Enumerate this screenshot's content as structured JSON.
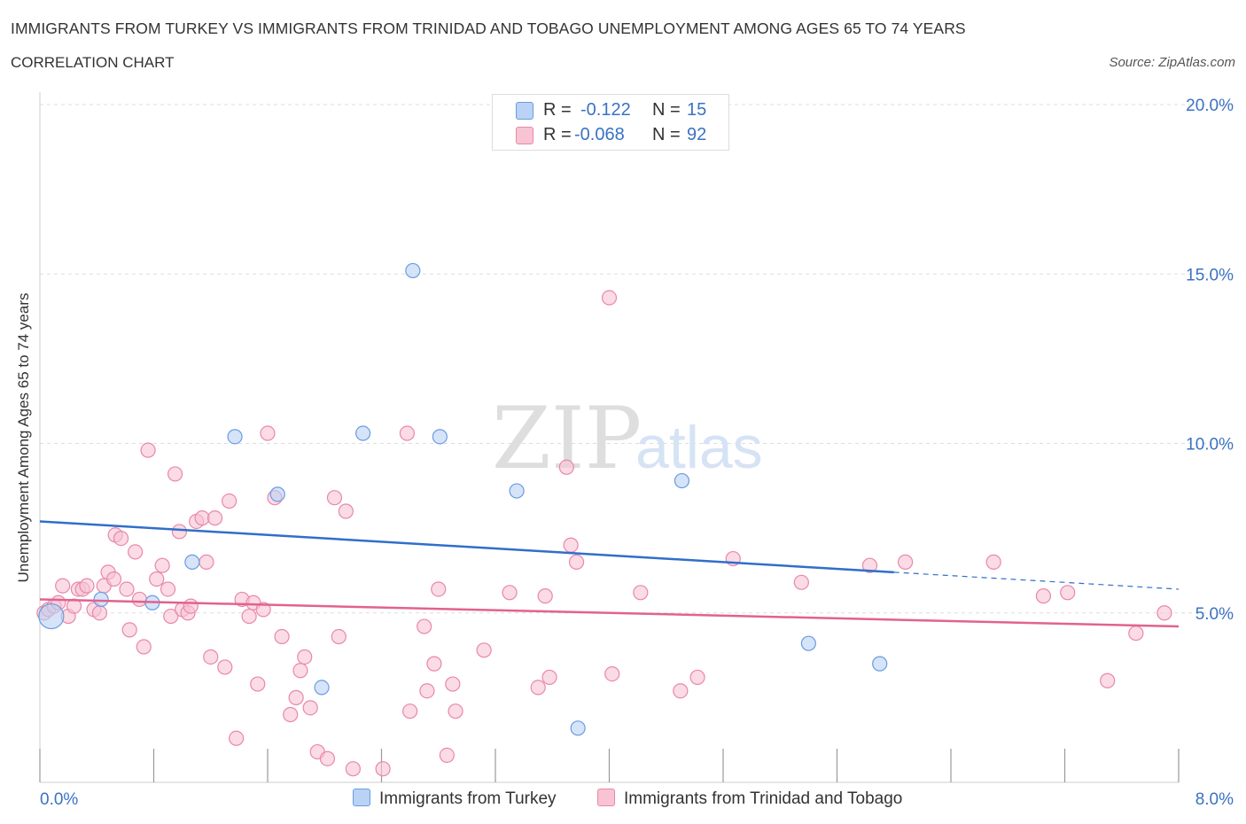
{
  "title": "IMMIGRANTS FROM TURKEY VS IMMIGRANTS FROM TRINIDAD AND TOBAGO UNEMPLOYMENT AMONG AGES 65 TO 74 YEARS",
  "subtitle": "CORRELATION CHART",
  "source": "Source: ZipAtlas.com",
  "watermark": {
    "zip": "ZIP",
    "atlas": "atlas"
  },
  "legend": {
    "r_label": "R =",
    "n_label": "N =",
    "series": [
      {
        "name": "Immigrants from Turkey",
        "r": "-0.122",
        "n": "15"
      },
      {
        "name": "Immigrants from Trinidad and Tobago",
        "r": "-0.068",
        "n": "92"
      }
    ]
  },
  "colors": {
    "turkey_fill": "#b9d2f5",
    "turkey_stroke": "#6a9be0",
    "turkey_line": "#2f6fca",
    "tt_fill": "#f8c3d3",
    "tt_stroke": "#e888a8",
    "tt_line": "#e2628f",
    "axis_text": "#3a72c4",
    "grid": "#dddddd"
  },
  "chart_data": {
    "type": "scatter",
    "title": "IMMIGRANTS FROM TURKEY VS IMMIGRANTS FROM TRINIDAD AND TOBAGO UNEMPLOYMENT AMONG AGES 65 TO 74 YEARS",
    "xlabel": "",
    "ylabel": "Unemployment Among Ages 65 to 74 years",
    "xlim": [
      0,
      8
    ],
    "ylim": [
      0,
      20
    ],
    "x_tick_labels": [
      "0.0%",
      "8.0%"
    ],
    "y_ticks": [
      5,
      10,
      15,
      20
    ],
    "y_tick_labels": [
      "5.0%",
      "10.0%",
      "15.0%",
      "20.0%"
    ],
    "grid": true,
    "series": [
      {
        "name": "Immigrants from Turkey",
        "points": [
          [
            0.08,
            4.9
          ],
          [
            0.43,
            5.4
          ],
          [
            0.79,
            5.3
          ],
          [
            1.07,
            6.5
          ],
          [
            1.37,
            10.2
          ],
          [
            1.67,
            8.5
          ],
          [
            1.98,
            2.8
          ],
          [
            2.27,
            10.3
          ],
          [
            2.62,
            15.1
          ],
          [
            2.81,
            10.2
          ],
          [
            3.35,
            8.6
          ],
          [
            3.78,
            1.6
          ],
          [
            4.51,
            8.9
          ],
          [
            5.4,
            4.1
          ],
          [
            5.9,
            3.5
          ]
        ],
        "trend": {
          "x": [
            0,
            6.0,
            8.0
          ],
          "y": [
            7.7,
            6.2,
            5.7
          ],
          "dashed_from": 6.0
        }
      },
      {
        "name": "Immigrants from Trinidad and Tobago",
        "points": [
          [
            0.03,
            5.0
          ],
          [
            0.06,
            5.1
          ],
          [
            0.1,
            5.2
          ],
          [
            0.13,
            5.3
          ],
          [
            0.16,
            5.8
          ],
          [
            0.2,
            4.9
          ],
          [
            0.24,
            5.2
          ],
          [
            0.27,
            5.7
          ],
          [
            0.3,
            5.7
          ],
          [
            0.33,
            5.8
          ],
          [
            0.38,
            5.1
          ],
          [
            0.42,
            5.0
          ],
          [
            0.45,
            5.8
          ],
          [
            0.48,
            6.2
          ],
          [
            0.52,
            6.0
          ],
          [
            0.53,
            7.3
          ],
          [
            0.57,
            7.2
          ],
          [
            0.61,
            5.7
          ],
          [
            0.63,
            4.5
          ],
          [
            0.67,
            6.8
          ],
          [
            0.7,
            5.4
          ],
          [
            0.73,
            4.0
          ],
          [
            0.76,
            9.8
          ],
          [
            0.82,
            6.0
          ],
          [
            0.86,
            6.4
          ],
          [
            0.9,
            5.7
          ],
          [
            0.92,
            4.9
          ],
          [
            0.95,
            9.1
          ],
          [
            0.98,
            7.4
          ],
          [
            1.0,
            5.1
          ],
          [
            1.04,
            5.0
          ],
          [
            1.06,
            5.2
          ],
          [
            1.1,
            7.7
          ],
          [
            1.14,
            7.8
          ],
          [
            1.17,
            6.5
          ],
          [
            1.2,
            3.7
          ],
          [
            1.23,
            7.8
          ],
          [
            1.3,
            3.4
          ],
          [
            1.33,
            8.3
          ],
          [
            1.38,
            1.3
          ],
          [
            1.42,
            5.4
          ],
          [
            1.47,
            4.9
          ],
          [
            1.5,
            5.3
          ],
          [
            1.53,
            2.9
          ],
          [
            1.57,
            5.1
          ],
          [
            1.6,
            10.3
          ],
          [
            1.65,
            8.4
          ],
          [
            1.7,
            4.3
          ],
          [
            1.76,
            2.0
          ],
          [
            1.8,
            2.5
          ],
          [
            1.83,
            3.3
          ],
          [
            1.86,
            3.7
          ],
          [
            1.9,
            2.2
          ],
          [
            1.95,
            0.9
          ],
          [
            2.02,
            0.7
          ],
          [
            2.07,
            8.4
          ],
          [
            2.1,
            4.3
          ],
          [
            2.15,
            8.0
          ],
          [
            2.2,
            0.4
          ],
          [
            2.41,
            0.4
          ],
          [
            2.58,
            10.3
          ],
          [
            2.6,
            2.1
          ],
          [
            2.7,
            4.6
          ],
          [
            2.72,
            2.7
          ],
          [
            2.77,
            3.5
          ],
          [
            2.8,
            5.7
          ],
          [
            2.86,
            0.8
          ],
          [
            2.9,
            2.9
          ],
          [
            2.92,
            2.1
          ],
          [
            3.12,
            3.9
          ],
          [
            3.3,
            5.6
          ],
          [
            3.5,
            2.8
          ],
          [
            3.55,
            5.5
          ],
          [
            3.58,
            3.1
          ],
          [
            3.7,
            9.3
          ],
          [
            3.73,
            7.0
          ],
          [
            3.77,
            6.5
          ],
          [
            4.0,
            14.3
          ],
          [
            4.02,
            3.2
          ],
          [
            4.22,
            5.6
          ],
          [
            4.5,
            2.7
          ],
          [
            4.62,
            3.1
          ],
          [
            4.87,
            6.6
          ],
          [
            5.35,
            5.9
          ],
          [
            5.83,
            6.4
          ],
          [
            6.08,
            6.5
          ],
          [
            6.7,
            6.5
          ],
          [
            7.05,
            5.5
          ],
          [
            7.22,
            5.6
          ],
          [
            7.5,
            3.0
          ],
          [
            7.7,
            4.4
          ],
          [
            7.9,
            5.0
          ]
        ],
        "trend": {
          "x": [
            0,
            8.0
          ],
          "y": [
            5.4,
            4.6
          ]
        }
      }
    ]
  }
}
